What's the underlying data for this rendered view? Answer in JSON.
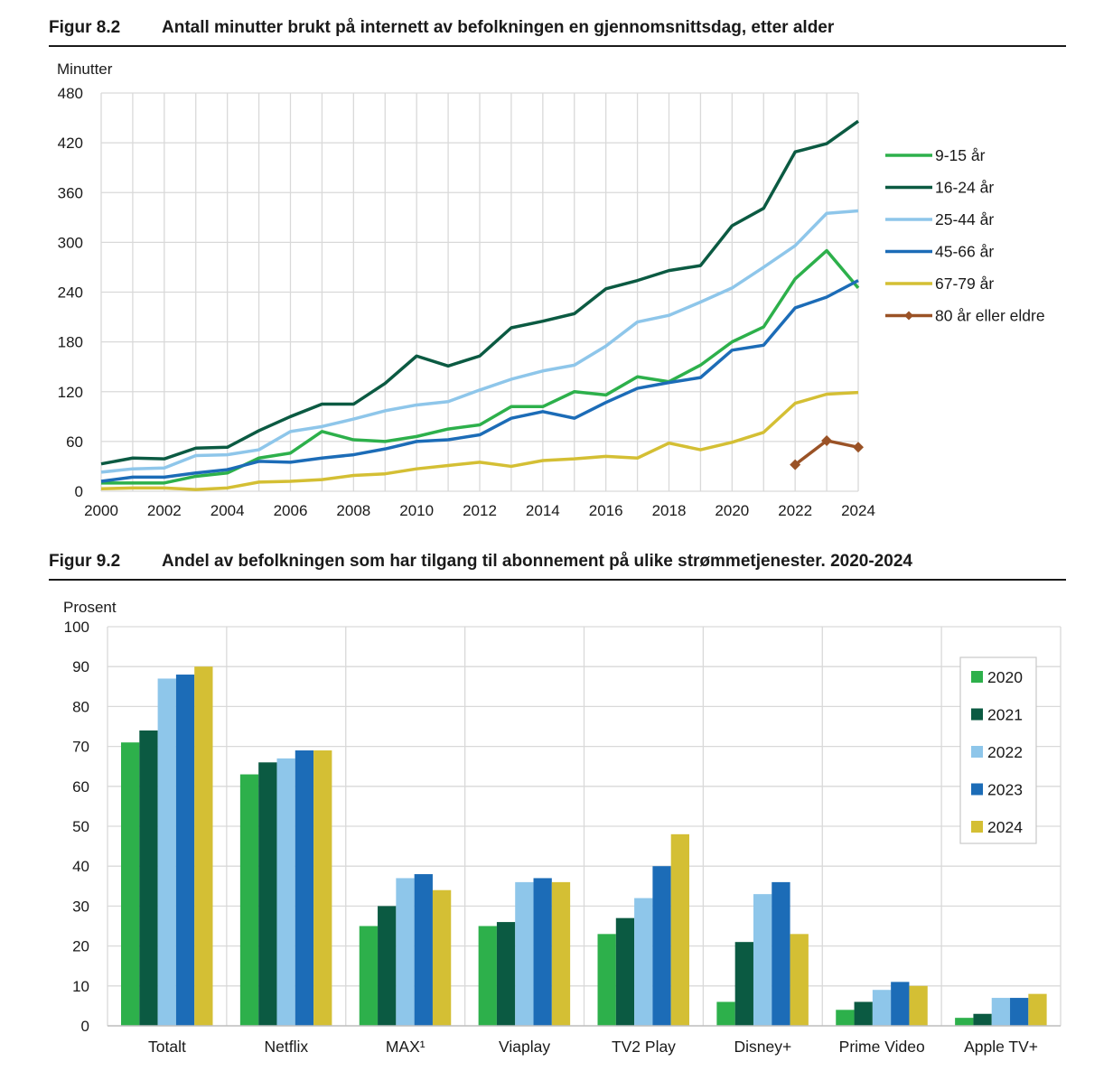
{
  "figures": [
    {
      "number": "Figur 8.2",
      "title": "Antall minutter brukt på internett av befolkningen en gjennomsnittsdag, etter alder",
      "chart_data": {
        "type": "line",
        "title": "Antall minutter brukt på internett av befolkningen en gjennomsnittsdag, etter alder",
        "ylabel": "Minutter",
        "xlabel": "",
        "ylim": [
          0,
          480
        ],
        "yticks": [
          0,
          60,
          120,
          180,
          240,
          300,
          360,
          420,
          480
        ],
        "xlim": [
          2000,
          2024
        ],
        "xticks": [
          2000,
          2002,
          2004,
          2006,
          2008,
          2010,
          2012,
          2014,
          2016,
          2018,
          2020,
          2022,
          2024
        ],
        "grid": true,
        "legend_position": "right",
        "series": [
          {
            "name": "9-15 år",
            "color": "#2db04b",
            "x": [
              2000,
              2001,
              2002,
              2003,
              2004,
              2005,
              2006,
              2007,
              2008,
              2009,
              2010,
              2011,
              2012,
              2013,
              2014,
              2015,
              2016,
              2017,
              2018,
              2019,
              2020,
              2021,
              2022,
              2023,
              2024
            ],
            "y": [
              10,
              10,
              10,
              18,
              22,
              40,
              46,
              72,
              62,
              60,
              66,
              75,
              80,
              102,
              102,
              120,
              116,
              138,
              132,
              152,
              180,
              198,
              256,
              290,
              245
            ]
          },
          {
            "name": "16-24 år",
            "color": "#0b5a42",
            "x": [
              2000,
              2001,
              2002,
              2003,
              2004,
              2005,
              2006,
              2007,
              2008,
              2009,
              2010,
              2011,
              2012,
              2013,
              2014,
              2015,
              2016,
              2017,
              2018,
              2019,
              2020,
              2021,
              2022,
              2023,
              2024
            ],
            "y": [
              33,
              40,
              39,
              52,
              53,
              73,
              90,
              105,
              105,
              130,
              163,
              151,
              163,
              197,
              205,
              214,
              244,
              254,
              266,
              272,
              320,
              341,
              409,
              419,
              446
            ]
          },
          {
            "name": "25-44 år",
            "color": "#8ec6ea",
            "x": [
              2000,
              2001,
              2002,
              2003,
              2004,
              2005,
              2006,
              2007,
              2008,
              2009,
              2010,
              2011,
              2012,
              2013,
              2014,
              2015,
              2016,
              2017,
              2018,
              2019,
              2020,
              2021,
              2022,
              2023,
              2024
            ],
            "y": [
              23,
              27,
              28,
              43,
              44,
              50,
              72,
              78,
              87,
              97,
              104,
              108,
              122,
              135,
              145,
              152,
              175,
              204,
              212,
              228,
              245,
              270,
              296,
              335,
              338
            ]
          },
          {
            "name": "45-66 år",
            "color": "#1c6cb7",
            "x": [
              2000,
              2001,
              2002,
              2003,
              2004,
              2005,
              2006,
              2007,
              2008,
              2009,
              2010,
              2011,
              2012,
              2013,
              2014,
              2015,
              2016,
              2017,
              2018,
              2019,
              2020,
              2021,
              2022,
              2023,
              2024
            ],
            "y": [
              12,
              17,
              17,
              22,
              26,
              36,
              35,
              40,
              44,
              51,
              60,
              62,
              68,
              88,
              96,
              88,
              107,
              124,
              131,
              137,
              170,
              176,
              221,
              234,
              254
            ]
          },
          {
            "name": "67-79 år",
            "color": "#d4bf34",
            "x": [
              2000,
              2001,
              2002,
              2003,
              2004,
              2005,
              2006,
              2007,
              2008,
              2009,
              2010,
              2011,
              2012,
              2013,
              2014,
              2015,
              2016,
              2017,
              2018,
              2019,
              2020,
              2021,
              2022,
              2023,
              2024
            ],
            "y": [
              3,
              4,
              4,
              2,
              4,
              11,
              12,
              14,
              19,
              21,
              27,
              31,
              35,
              30,
              37,
              39,
              42,
              40,
              58,
              50,
              59,
              71,
              106,
              117,
              119
            ]
          },
          {
            "name": "80 år eller eldre",
            "color": "#9a5226",
            "markers": true,
            "x": [
              2022,
              2023,
              2024
            ],
            "y": [
              32,
              61,
              53
            ]
          }
        ]
      }
    },
    {
      "number": "Figur 9.2",
      "title": "Andel av befolkningen som har tilgang til abonnement på ulike strømmetjenester. 2020-2024",
      "chart_data": {
        "type": "bar",
        "title": "Andel av befolkningen som har tilgang til abonnement på ulike strømmetjenester. 2020-2024",
        "ylabel": "Prosent",
        "xlabel": "",
        "ylim": [
          0,
          100
        ],
        "yticks": [
          0,
          10,
          20,
          30,
          40,
          50,
          60,
          70,
          80,
          90,
          100
        ],
        "grid": true,
        "legend_position": "top-right",
        "categories": [
          "Totalt",
          "Netflix",
          "MAX¹",
          "Viaplay",
          "TV2 Play",
          "Disney+",
          "Prime Video",
          "Apple TV+"
        ],
        "series": [
          {
            "name": "2020",
            "color": "#2db04b",
            "values": [
              71,
              63,
              25,
              25,
              23,
              6,
              4,
              2
            ]
          },
          {
            "name": "2021",
            "color": "#0b5a42",
            "values": [
              74,
              66,
              30,
              26,
              27,
              21,
              6,
              3
            ]
          },
          {
            "name": "2022",
            "color": "#8ec6ea",
            "values": [
              87,
              67,
              37,
              36,
              32,
              33,
              9,
              7
            ]
          },
          {
            "name": "2023",
            "color": "#1c6cb7",
            "values": [
              88,
              69,
              38,
              37,
              40,
              36,
              11,
              7
            ]
          },
          {
            "name": "2024",
            "color": "#d4bf34",
            "values": [
              90,
              69,
              34,
              36,
              48,
              23,
              10,
              8
            ]
          }
        ]
      }
    }
  ]
}
